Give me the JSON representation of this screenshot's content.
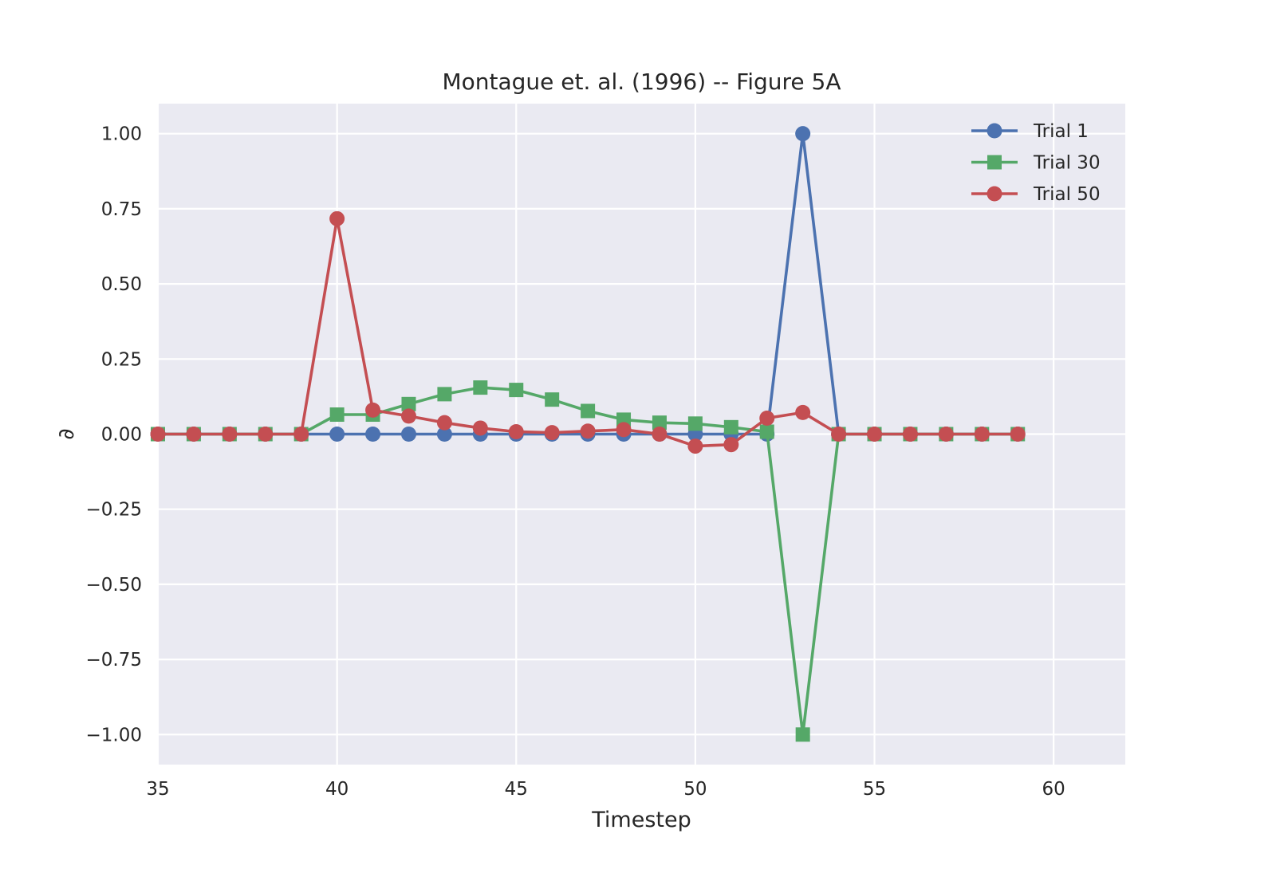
{
  "chart_data": {
    "type": "line",
    "title": "Montague et. al. (1996) -- Figure 5A",
    "xlabel": "Timestep",
    "ylabel": "∂",
    "xlim": [
      35,
      62
    ],
    "ylim": [
      -1.1,
      1.1
    ],
    "xticks": [
      35,
      40,
      45,
      50,
      55,
      60
    ],
    "yticks": [
      1.0,
      0.75,
      0.5,
      0.25,
      0.0,
      -0.25,
      -0.5,
      -0.75,
      -1.0
    ],
    "ytick_labels": [
      "1.00",
      "0.75",
      "0.50",
      "0.25",
      "0.00",
      "−0.25",
      "−0.50",
      "−0.75",
      "−1.00"
    ],
    "grid": true,
    "background": "#eaeaf2",
    "legend_position": "top-right",
    "x": [
      35,
      36,
      37,
      38,
      39,
      40,
      41,
      42,
      43,
      44,
      45,
      46,
      47,
      48,
      49,
      50,
      51,
      52,
      53,
      54,
      55,
      56,
      57,
      58,
      59
    ],
    "series": [
      {
        "name": "Trial 1",
        "color": "#4c72b0",
        "marker": "circle",
        "values": [
          0,
          0,
          0,
          0,
          0,
          0,
          0,
          0,
          0,
          0,
          0,
          0,
          0,
          0,
          0,
          0,
          0,
          0,
          1.0,
          0,
          0,
          0,
          0,
          0,
          0
        ]
      },
      {
        "name": "Trial 30",
        "color": "#55a868",
        "marker": "square",
        "values": [
          0,
          0,
          0,
          0,
          0,
          0.065,
          0.065,
          0.1,
          0.133,
          0.155,
          0.147,
          0.115,
          0.077,
          0.048,
          0.038,
          0.035,
          0.023,
          0.008,
          -1.0,
          0,
          0,
          0,
          0,
          0,
          0
        ]
      },
      {
        "name": "Trial 50",
        "color": "#c44e52",
        "marker": "circle",
        "values": [
          0,
          0,
          0,
          0,
          0,
          0.717,
          0.08,
          0.06,
          0.038,
          0.02,
          0.008,
          0.005,
          0.01,
          0.015,
          0.0,
          -0.04,
          -0.035,
          0.053,
          0.072,
          0,
          0,
          0,
          0,
          0,
          0
        ]
      }
    ]
  }
}
